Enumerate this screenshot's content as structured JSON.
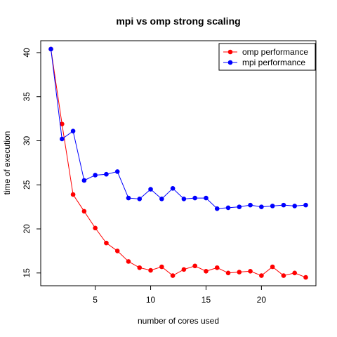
{
  "chart_data": {
    "type": "line",
    "title": "mpi vs omp strong scaling",
    "xlabel": "number of cores used",
    "ylabel": "time of execution",
    "xlim": [
      0.08,
      24.92
    ],
    "ylim": [
      13.55,
      41.35
    ],
    "x_ticks": [
      5,
      10,
      15,
      20
    ],
    "y_ticks": [
      15,
      20,
      25,
      30,
      35,
      40
    ],
    "grid": false,
    "legend_position": "top-right",
    "series": [
      {
        "name": "omp performance",
        "color": "#ff0000",
        "x": [
          1,
          2,
          3,
          4,
          5,
          6,
          7,
          8,
          9,
          10,
          11,
          12,
          13,
          14,
          15,
          16,
          17,
          18,
          19,
          20,
          21,
          22,
          23,
          24
        ],
        "y": [
          40.4,
          31.9,
          23.9,
          22.0,
          20.1,
          18.4,
          17.5,
          16.3,
          15.6,
          15.3,
          15.7,
          14.7,
          15.4,
          15.8,
          15.2,
          15.6,
          15.0,
          15.1,
          15.2,
          14.7,
          15.7,
          14.7,
          15.0,
          14.5
        ]
      },
      {
        "name": "mpi performance",
        "color": "#0000ff",
        "x": [
          1,
          2,
          3,
          4,
          5,
          6,
          7,
          8,
          9,
          10,
          11,
          12,
          13,
          14,
          15,
          16,
          17,
          18,
          19,
          20,
          21,
          22,
          23,
          24
        ],
        "y": [
          40.4,
          30.2,
          31.1,
          25.5,
          26.1,
          26.2,
          26.5,
          23.5,
          23.4,
          24.5,
          23.4,
          24.6,
          23.4,
          23.5,
          23.5,
          22.3,
          22.4,
          22.5,
          22.7,
          22.5,
          22.6,
          22.7,
          22.6,
          22.7
        ]
      }
    ]
  }
}
